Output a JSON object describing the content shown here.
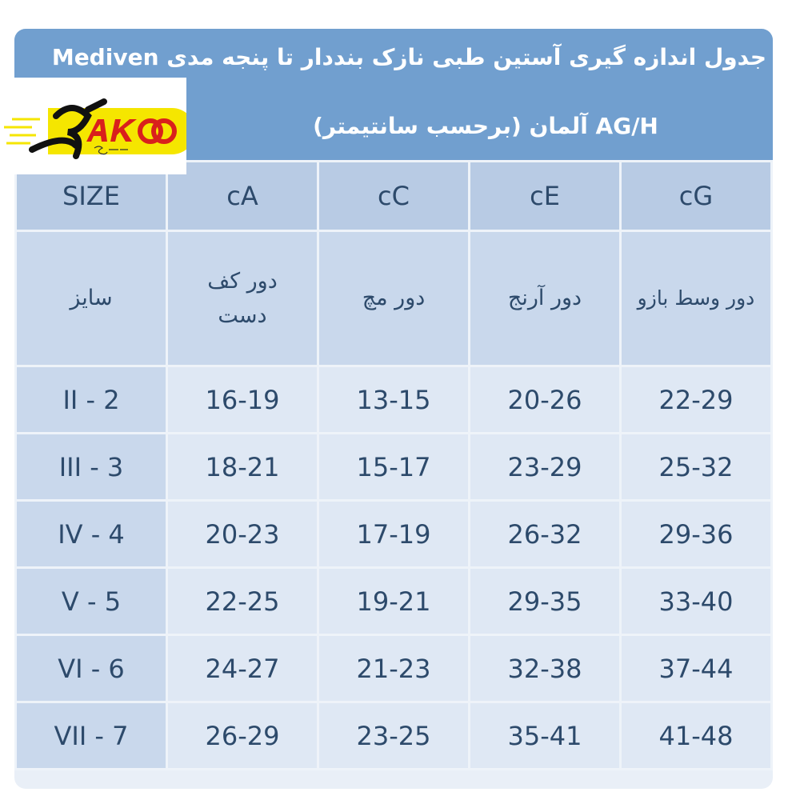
{
  "title": {
    "line1": "جدول اندازه گیری آستین طبی نازک بنددار تا پنجه مدی Mediven",
    "line2": "AG/H آلمان (برحسب سانتیمتر)"
  },
  "logo": {
    "text": "AKO",
    "subtext": "Sport",
    "colors": {
      "yellow": "#f5e600",
      "red": "#d9201c",
      "black": "#111111"
    }
  },
  "columns": [
    "SIZE",
    "cA",
    "cC",
    "cE",
    "cG"
  ],
  "column_labels": [
    "سایز",
    "دور کف دست",
    "دور مچ",
    "دور آرنج",
    "دور وسط بازو"
  ],
  "rows": [
    [
      "II - 2",
      "16-19",
      "13-15",
      "20-26",
      "22-29"
    ],
    [
      "III - 3",
      "18-21",
      "15-17",
      "23-29",
      "25-32"
    ],
    [
      "IV - 4",
      "20-23",
      "17-19",
      "26-32",
      "29-36"
    ],
    [
      "V - 5",
      "22-25",
      "19-21",
      "29-35",
      "33-40"
    ],
    [
      "VI - 6",
      "24-27",
      "21-23",
      "32-38",
      "37-44"
    ],
    [
      "VII - 7",
      "26-29",
      "23-25",
      "35-41",
      "41-48"
    ]
  ],
  "colors": {
    "header": "#719fcf",
    "column_header": "#b8cbe4",
    "size_column": "#c9d8ec",
    "cell": "#dfe8f4",
    "text": "#2d4a6b"
  }
}
